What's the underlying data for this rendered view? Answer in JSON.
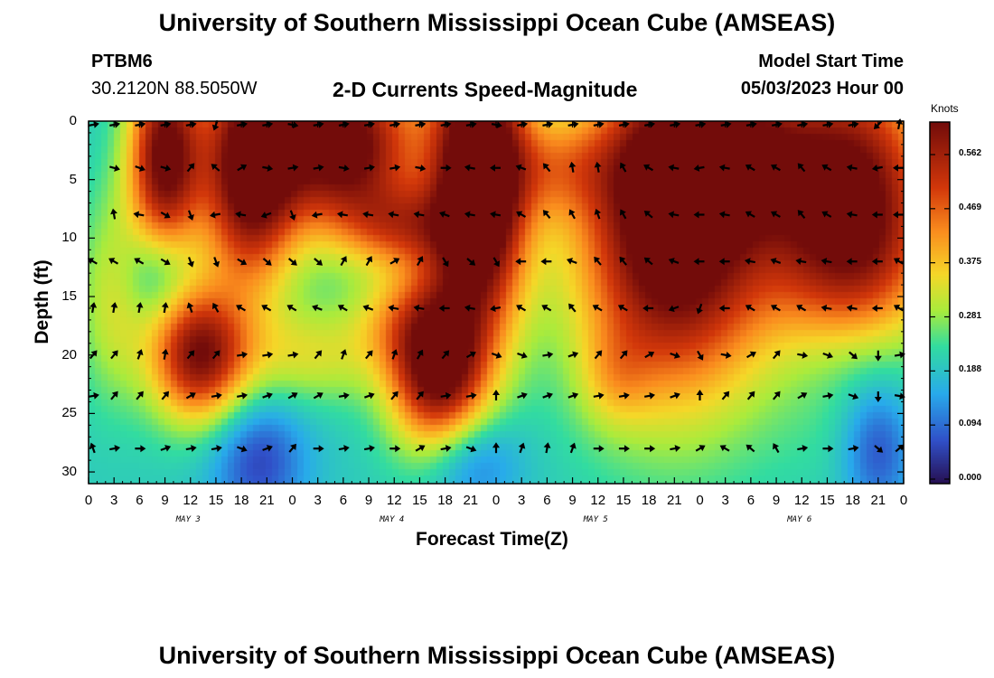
{
  "page": {
    "title": "University of Southern Mississippi Ocean Cube (AMSEAS)",
    "footer_title": "University of Southern Mississippi Ocean Cube (AMSEAS)"
  },
  "station": {
    "name": "PTBM6",
    "coords": "30.2120N  88.5050W"
  },
  "model": {
    "label": "Model Start Time",
    "start": "05/03/2023 Hour 00"
  },
  "chart_data": {
    "type": "heatmap",
    "title": "2-D Currents Speed-Magnitude",
    "xlabel": "Forecast Time(Z)",
    "ylabel": "Depth (ft)",
    "x_hours": [
      0,
      3,
      6,
      9,
      12,
      15,
      18,
      21,
      24,
      27,
      30,
      33,
      36,
      39,
      42,
      45,
      48,
      51,
      54,
      57,
      60,
      63,
      66,
      69,
      72,
      75,
      78,
      81,
      84,
      87,
      90,
      93,
      96
    ],
    "x_tick_labels": [
      "0",
      "3",
      "6",
      "9",
      "12",
      "15",
      "18",
      "21",
      "0",
      "3",
      "6",
      "9",
      "12",
      "15",
      "18",
      "21",
      "0",
      "3",
      "6",
      "9",
      "12",
      "15",
      "18",
      "21",
      "0",
      "3",
      "6",
      "9",
      "12",
      "15",
      "18",
      "21",
      "0"
    ],
    "day_labels": [
      {
        "label": "MAY 3",
        "hour": 12
      },
      {
        "label": "MAY 4",
        "hour": 36
      },
      {
        "label": "MAY 5",
        "hour": 60
      },
      {
        "label": "MAY 6",
        "hour": 84
      }
    ],
    "y_ticks": [
      0,
      5,
      10,
      15,
      20,
      25,
      30
    ],
    "ylim": [
      0,
      31
    ],
    "xlim": [
      0,
      96
    ],
    "colorbar": {
      "label": "Knots",
      "ticks": [
        "0.562",
        "0.469",
        "0.375",
        "0.281",
        "0.188",
        "0.094",
        "0.000"
      ],
      "range": [
        0,
        0.6
      ]
    },
    "arrow_depths": [
      0,
      4,
      8,
      12,
      16,
      20,
      23.5,
      28
    ],
    "blobs": [
      {
        "h": 9,
        "d": 3,
        "sh": 3,
        "sd": 6,
        "a": 0.42
      },
      {
        "h": 19,
        "d": 4,
        "sh": 4,
        "sd": 7,
        "a": 0.45
      },
      {
        "h": 30,
        "d": 2,
        "sh": 6,
        "sd": 5,
        "a": 0.45
      },
      {
        "h": 46,
        "d": 5,
        "sh": 4,
        "sd": 9,
        "a": 0.55
      },
      {
        "h": 37,
        "d": 9,
        "sh": 5,
        "sd": 2.5,
        "a": 0.2
      },
      {
        "h": 69,
        "d": 9,
        "sh": 8,
        "sd": 10,
        "a": 0.5
      },
      {
        "h": 90,
        "d": 8,
        "sh": 7,
        "sd": 9,
        "a": 0.45
      },
      {
        "h": 75,
        "d": 3,
        "sh": 7,
        "sd": 4,
        "a": 0.25
      },
      {
        "h": 13,
        "d": 20,
        "sh": 4,
        "sd": 4,
        "a": 0.38
      },
      {
        "h": 41,
        "d": 21,
        "sh": 4,
        "sd": 5,
        "a": 0.42
      },
      {
        "h": 3,
        "d": 15,
        "sh": 3,
        "sd": 6,
        "a": 0.12
      },
      {
        "h": 26,
        "d": 20,
        "sh": 6,
        "sd": 3,
        "a": 0.12
      },
      {
        "h": 36,
        "d": 17,
        "sh": 4,
        "sd": 3,
        "a": 0.1
      },
      {
        "h": 55,
        "d": 4,
        "sh": 5,
        "sd": 3,
        "a": 0.12
      },
      {
        "h": 62,
        "d": 22,
        "sh": 3,
        "sd": 3,
        "a": 0.08
      }
    ],
    "dips": [
      {
        "h": 20,
        "d": 29,
        "sh": 4,
        "sd": 4,
        "a": 0.14
      },
      {
        "h": 45,
        "d": 29,
        "sh": 4,
        "sd": 3,
        "a": 0.12
      },
      {
        "h": 93,
        "d": 28,
        "sh": 3,
        "sd": 4,
        "a": 0.14
      },
      {
        "h": 8,
        "d": 13,
        "sh": 3,
        "sd": 3,
        "a": 0.1
      },
      {
        "h": 90,
        "d": 20,
        "sh": 6,
        "sd": 4,
        "a": 0.09
      }
    ],
    "arrows": [
      [
        [
          0,
          80
        ],
        [
          3,
          80
        ],
        [
          6,
          80
        ],
        [
          9,
          80
        ],
        [
          12,
          80
        ],
        [
          15,
          200
        ],
        [
          18,
          80
        ],
        [
          21,
          80
        ],
        [
          24,
          100
        ],
        [
          27,
          80
        ],
        [
          30,
          80
        ],
        [
          33,
          80
        ],
        [
          36,
          80
        ],
        [
          39,
          80
        ],
        [
          42,
          80
        ],
        [
          45,
          80
        ],
        [
          48,
          100
        ],
        [
          51,
          80
        ],
        [
          54,
          80
        ],
        [
          57,
          80
        ],
        [
          60,
          80
        ],
        [
          63,
          80
        ],
        [
          66,
          80
        ],
        [
          69,
          80
        ],
        [
          72,
          80
        ],
        [
          75,
          80
        ],
        [
          78,
          80
        ],
        [
          81,
          80
        ],
        [
          84,
          80
        ],
        [
          87,
          80
        ],
        [
          90,
          80
        ],
        [
          93,
          225
        ],
        [
          96,
          10
        ]
      ],
      [
        [
          3,
          105
        ],
        [
          6,
          110
        ],
        [
          9,
          105
        ],
        [
          12,
          40
        ],
        [
          15,
          310
        ],
        [
          18,
          60
        ],
        [
          21,
          100
        ],
        [
          24,
          80
        ],
        [
          27,
          80
        ],
        [
          30,
          100
        ],
        [
          33,
          80
        ],
        [
          36,
          80
        ],
        [
          39,
          100
        ],
        [
          42,
          90
        ],
        [
          45,
          280
        ],
        [
          48,
          270
        ],
        [
          51,
          290
        ],
        [
          54,
          320
        ],
        [
          57,
          350
        ],
        [
          60,
          350
        ],
        [
          63,
          330
        ],
        [
          66,
          300
        ],
        [
          69,
          280
        ],
        [
          72,
          260
        ],
        [
          75,
          280
        ],
        [
          78,
          300
        ],
        [
          81,
          300
        ],
        [
          84,
          320
        ],
        [
          87,
          300
        ],
        [
          90,
          280
        ],
        [
          93,
          260
        ],
        [
          96,
          270
        ]
      ],
      [
        [
          3,
          350
        ],
        [
          6,
          280
        ],
        [
          9,
          120
        ],
        [
          12,
          160
        ],
        [
          15,
          260
        ],
        [
          18,
          280
        ],
        [
          21,
          250
        ],
        [
          24,
          160
        ],
        [
          27,
          260
        ],
        [
          30,
          280
        ],
        [
          33,
          280
        ],
        [
          36,
          280
        ],
        [
          39,
          280
        ],
        [
          42,
          290
        ],
        [
          45,
          280
        ],
        [
          48,
          280
        ],
        [
          51,
          300
        ],
        [
          54,
          320
        ],
        [
          57,
          330
        ],
        [
          60,
          340
        ],
        [
          63,
          330
        ],
        [
          66,
          310
        ],
        [
          69,
          280
        ],
        [
          72,
          270
        ],
        [
          75,
          280
        ],
        [
          78,
          300
        ],
        [
          81,
          300
        ],
        [
          84,
          320
        ],
        [
          87,
          300
        ],
        [
          90,
          280
        ],
        [
          93,
          270
        ],
        [
          96,
          270
        ]
      ],
      [
        [
          0,
          300
        ],
        [
          3,
          300
        ],
        [
          6,
          300
        ],
        [
          9,
          120
        ],
        [
          12,
          160
        ],
        [
          15,
          160
        ],
        [
          18,
          120
        ],
        [
          21,
          130
        ],
        [
          24,
          130
        ],
        [
          27,
          130
        ],
        [
          30,
          30
        ],
        [
          33,
          30
        ],
        [
          36,
          60
        ],
        [
          39,
          30
        ],
        [
          42,
          150
        ],
        [
          45,
          130
        ],
        [
          48,
          150
        ],
        [
          51,
          270
        ],
        [
          54,
          270
        ],
        [
          57,
          290
        ],
        [
          60,
          320
        ],
        [
          63,
          320
        ],
        [
          66,
          310
        ],
        [
          69,
          290
        ],
        [
          72,
          270
        ],
        [
          75,
          270
        ],
        [
          78,
          280
        ],
        [
          81,
          290
        ],
        [
          84,
          280
        ],
        [
          87,
          280
        ],
        [
          90,
          270
        ],
        [
          93,
          270
        ],
        [
          96,
          300
        ]
      ],
      [
        [
          0,
          10
        ],
        [
          3,
          10
        ],
        [
          6,
          10
        ],
        [
          9,
          10
        ],
        [
          12,
          340
        ],
        [
          15,
          330
        ],
        [
          18,
          300
        ],
        [
          21,
          300
        ],
        [
          24,
          300
        ],
        [
          27,
          290
        ],
        [
          30,
          300
        ],
        [
          33,
          290
        ],
        [
          36,
          280
        ],
        [
          39,
          280
        ],
        [
          42,
          270
        ],
        [
          45,
          280
        ],
        [
          48,
          260
        ],
        [
          51,
          300
        ],
        [
          54,
          300
        ],
        [
          57,
          320
        ],
        [
          60,
          300
        ],
        [
          63,
          300
        ],
        [
          66,
          270
        ],
        [
          69,
          250
        ],
        [
          72,
          200
        ],
        [
          75,
          270
        ],
        [
          78,
          300
        ],
        [
          81,
          300
        ],
        [
          84,
          300
        ],
        [
          87,
          280
        ],
        [
          90,
          280
        ],
        [
          93,
          270
        ],
        [
          96,
          300
        ]
      ],
      [
        [
          0,
          40
        ],
        [
          3,
          40
        ],
        [
          6,
          20
        ],
        [
          9,
          10
        ],
        [
          12,
          40
        ],
        [
          15,
          40
        ],
        [
          18,
          80
        ],
        [
          21,
          80
        ],
        [
          24,
          80
        ],
        [
          27,
          40
        ],
        [
          30,
          20
        ],
        [
          33,
          40
        ],
        [
          36,
          20
        ],
        [
          39,
          30
        ],
        [
          42,
          40
        ],
        [
          45,
          60
        ],
        [
          48,
          110
        ],
        [
          51,
          110
        ],
        [
          54,
          80
        ],
        [
          57,
          70
        ],
        [
          60,
          40
        ],
        [
          63,
          40
        ],
        [
          66,
          60
        ],
        [
          69,
          110
        ],
        [
          72,
          150
        ],
        [
          75,
          100
        ],
        [
          78,
          60
        ],
        [
          81,
          40
        ],
        [
          84,
          100
        ],
        [
          87,
          110
        ],
        [
          90,
          130
        ],
        [
          93,
          180
        ],
        [
          96,
          80
        ]
      ],
      [
        [
          0,
          80
        ],
        [
          3,
          40
        ],
        [
          6,
          40
        ],
        [
          9,
          40
        ],
        [
          12,
          60
        ],
        [
          15,
          80
        ],
        [
          18,
          80
        ],
        [
          21,
          70
        ],
        [
          24,
          60
        ],
        [
          27,
          60
        ],
        [
          30,
          80
        ],
        [
          33,
          70
        ],
        [
          36,
          40
        ],
        [
          39,
          40
        ],
        [
          42,
          80
        ],
        [
          45,
          80
        ],
        [
          48,
          0
        ],
        [
          51,
          70
        ],
        [
          54,
          70
        ],
        [
          57,
          70
        ],
        [
          60,
          80
        ],
        [
          63,
          80
        ],
        [
          66,
          80
        ],
        [
          69,
          70
        ],
        [
          72,
          0
        ],
        [
          75,
          40
        ],
        [
          78,
          40
        ],
        [
          81,
          40
        ],
        [
          84,
          60
        ],
        [
          87,
          80
        ],
        [
          90,
          110
        ],
        [
          93,
          180
        ],
        [
          96,
          100
        ]
      ],
      [
        [
          0,
          340
        ],
        [
          3,
          80
        ],
        [
          6,
          90
        ],
        [
          9,
          70
        ],
        [
          12,
          80
        ],
        [
          15,
          80
        ],
        [
          18,
          110
        ],
        [
          21,
          70
        ],
        [
          24,
          40
        ],
        [
          27,
          90
        ],
        [
          30,
          80
        ],
        [
          33,
          80
        ],
        [
          36,
          90
        ],
        [
          39,
          60
        ],
        [
          42,
          80
        ],
        [
          45,
          110
        ],
        [
          48,
          0
        ],
        [
          51,
          20
        ],
        [
          54,
          10
        ],
        [
          57,
          20
        ],
        [
          60,
          90
        ],
        [
          63,
          90
        ],
        [
          66,
          90
        ],
        [
          69,
          80
        ],
        [
          72,
          60
        ],
        [
          75,
          300
        ],
        [
          78,
          310
        ],
        [
          81,
          330
        ],
        [
          84,
          80
        ],
        [
          87,
          90
        ],
        [
          90,
          80
        ],
        [
          93,
          130
        ],
        [
          96,
          50
        ]
      ]
    ]
  }
}
